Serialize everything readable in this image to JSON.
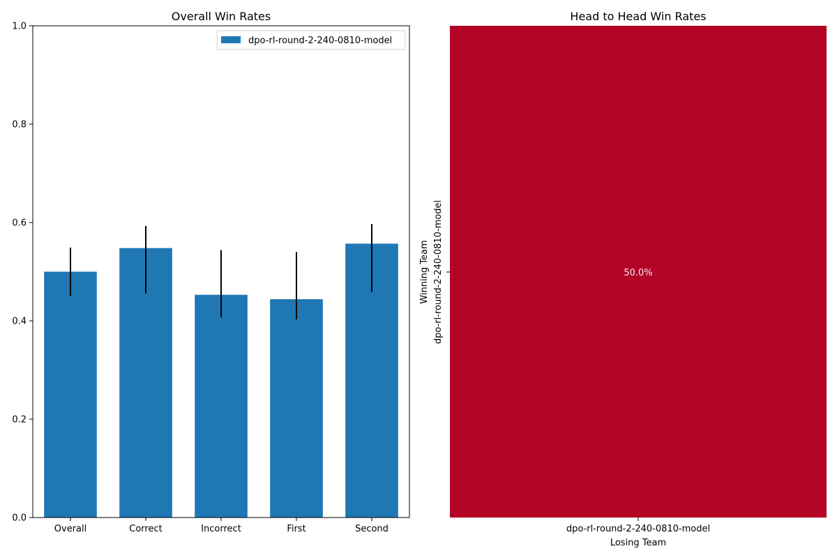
{
  "chart_data": [
    {
      "type": "bar",
      "title": "Overall Win Rates",
      "xlabel": "",
      "ylabel": "",
      "ylim": [
        0,
        1.0
      ],
      "yticks": [
        "0.0",
        "0.2",
        "0.4",
        "0.6",
        "0.8",
        "1.0"
      ],
      "ytick_values": [
        0,
        0.2,
        0.4,
        0.6,
        0.8,
        1.0
      ],
      "categories": [
        "Overall",
        "Correct",
        "Incorrect",
        "First",
        "Second"
      ],
      "series": [
        {
          "name": "dpo-rl-round-2-240-0810-model",
          "color": "#1f77b4",
          "values": [
            0.5,
            0.548,
            0.453,
            0.444,
            0.557
          ],
          "error_low": [
            0.451,
            0.456,
            0.407,
            0.403,
            0.459
          ],
          "error_high": [
            0.549,
            0.593,
            0.544,
            0.54,
            0.597
          ]
        }
      ],
      "legend_position": "top-right",
      "grid": false
    },
    {
      "type": "heatmap",
      "title": "Head to Head Win Rates",
      "xlabel": "Losing Team",
      "ylabel": "Winning Team",
      "x_categories": [
        "dpo-rl-round-2-240-0810-model"
      ],
      "y_categories": [
        "dpo-rl-round-2-240-0810-model"
      ],
      "values": [
        [
          0.5
        ]
      ],
      "cell_labels": [
        [
          "50.0%"
        ]
      ],
      "cell_color": "#b40426",
      "label_color": "#f0f0f0"
    }
  ]
}
